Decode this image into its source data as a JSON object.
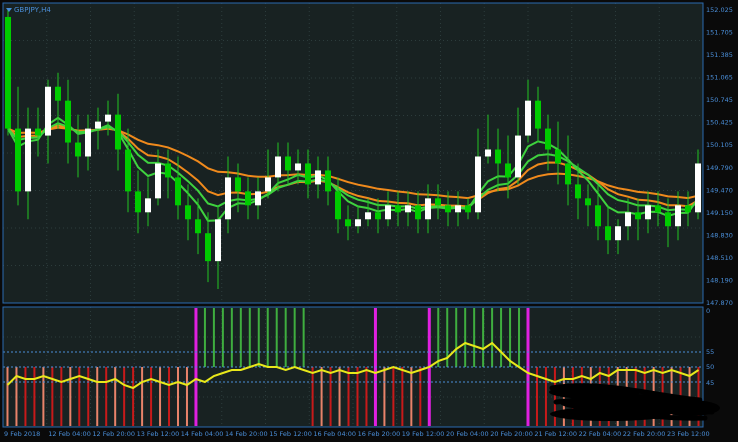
{
  "window": {
    "symbol_title": "GBPJPY,H4",
    "menu_arrow": "triangle-down-icon"
  },
  "colors": {
    "background": "#0a0a0a",
    "panel_bg": "#182222",
    "grid": "#2c3c3c",
    "frame": "#2a6ab0",
    "axis_text": "#4a8ed8",
    "bull_candle": "#ffffff",
    "bear_candle": "#00cc00",
    "wick": "#22c422",
    "ma_orange": "#f08a1c",
    "ma_green": "#3fd23f",
    "osc_line": "#e8e81a",
    "hist_red": "#c81a1a",
    "hist_salmon": "#e8836a",
    "hist_green": "#3fae3f",
    "hist_magenta": "#e020e0",
    "level_line": "#4a8ed8"
  },
  "price_axis_labels": [
    "152.025",
    "151.705",
    "151.385",
    "151.065",
    "150.745",
    "150.425",
    "150.105",
    "149.790",
    "149.470",
    "149.150",
    "148.830",
    "148.510",
    "148.190",
    "147.870"
  ],
  "indicator_axis_labels": [
    "0",
    "55",
    "50",
    "45"
  ],
  "time_axis_labels": [
    "9 Feb 2018",
    "12 Feb 04:00",
    "12 Feb 20:00",
    "13 Feb 12:00",
    "14 Feb 04:00",
    "14 Feb 20:00",
    "15 Feb 12:00",
    "16 Feb 04:00",
    "16 Feb 20:00",
    "19 Feb 12:00",
    "20 Feb 04:00",
    "20 Feb 20:00",
    "21 Feb 12:00",
    "22 Feb 04:00",
    "22 Feb 20:00",
    "23 Feb 12:00"
  ],
  "chart_data": {
    "type": "candlestick",
    "symbol": "GBPJPY",
    "timeframe": "H4",
    "ylim": [
      147.8,
      152.1
    ],
    "candles": [
      [
        151.9,
        150.3,
        152.0,
        150.2
      ],
      [
        150.3,
        149.4,
        150.9,
        149.2
      ],
      [
        149.4,
        150.3,
        150.6,
        149.0
      ],
      [
        150.3,
        150.2,
        150.6,
        149.9
      ],
      [
        150.2,
        150.9,
        151.0,
        149.8
      ],
      [
        150.9,
        150.7,
        151.1,
        150.3
      ],
      [
        150.7,
        150.1,
        151.0,
        149.8
      ],
      [
        150.1,
        149.9,
        150.5,
        149.6
      ],
      [
        149.9,
        150.3,
        150.5,
        149.7
      ],
      [
        150.3,
        150.4,
        150.6,
        150.0
      ],
      [
        150.4,
        150.5,
        150.7,
        150.2
      ],
      [
        150.5,
        150.0,
        150.8,
        149.7
      ],
      [
        150.0,
        149.4,
        150.3,
        149.1
      ],
      [
        149.4,
        149.1,
        149.7,
        148.8
      ],
      [
        149.1,
        149.3,
        149.6,
        148.9
      ],
      [
        149.3,
        149.8,
        150.0,
        149.2
      ],
      [
        149.8,
        149.6,
        150.0,
        149.3
      ],
      [
        149.6,
        149.2,
        149.9,
        149.0
      ],
      [
        149.2,
        149.0,
        149.5,
        148.7
      ],
      [
        149.0,
        148.8,
        149.3,
        148.5
      ],
      [
        148.8,
        148.4,
        149.1,
        148.1
      ],
      [
        148.4,
        149.0,
        149.2,
        148.0
      ],
      [
        149.0,
        149.6,
        149.9,
        148.8
      ],
      [
        149.6,
        149.4,
        149.8,
        149.1
      ],
      [
        149.4,
        149.2,
        149.6,
        149.0
      ],
      [
        149.2,
        149.4,
        149.6,
        149.0
      ],
      [
        149.4,
        149.6,
        150.0,
        149.3
      ],
      [
        149.6,
        149.9,
        150.1,
        149.4
      ],
      [
        149.9,
        149.7,
        150.1,
        149.5
      ],
      [
        149.7,
        149.8,
        150.0,
        149.5
      ],
      [
        149.8,
        149.5,
        150.0,
        149.3
      ],
      [
        149.5,
        149.7,
        149.9,
        149.3
      ],
      [
        149.7,
        149.4,
        149.9,
        149.2
      ],
      [
        149.4,
        149.0,
        149.6,
        148.8
      ],
      [
        149.0,
        148.9,
        149.2,
        148.7
      ],
      [
        148.9,
        149.0,
        149.2,
        148.8
      ],
      [
        149.0,
        149.1,
        149.3,
        148.9
      ],
      [
        149.1,
        149.0,
        149.3,
        148.8
      ],
      [
        149.0,
        149.2,
        149.4,
        148.9
      ],
      [
        149.2,
        149.1,
        149.4,
        148.9
      ],
      [
        149.1,
        149.2,
        149.4,
        148.9
      ],
      [
        149.2,
        149.0,
        149.4,
        148.8
      ],
      [
        149.0,
        149.3,
        149.5,
        148.8
      ],
      [
        149.3,
        149.2,
        149.5,
        149.0
      ],
      [
        149.2,
        149.1,
        149.4,
        148.9
      ],
      [
        149.1,
        149.2,
        149.4,
        148.9
      ],
      [
        149.2,
        149.1,
        149.3,
        149.0
      ],
      [
        149.1,
        149.9,
        150.3,
        149.0
      ],
      [
        149.9,
        150.0,
        150.5,
        149.8
      ],
      [
        150.0,
        149.8,
        150.3,
        149.4
      ],
      [
        149.8,
        149.6,
        150.2,
        149.3
      ],
      [
        149.6,
        150.2,
        150.6,
        149.5
      ],
      [
        150.2,
        150.7,
        151.0,
        150.1
      ],
      [
        150.7,
        150.3,
        150.9,
        150.1
      ],
      [
        150.3,
        150.0,
        150.5,
        149.7
      ],
      [
        150.0,
        149.8,
        150.4,
        149.5
      ],
      [
        149.8,
        149.5,
        150.2,
        149.2
      ],
      [
        149.5,
        149.3,
        149.8,
        149.0
      ],
      [
        149.3,
        149.2,
        149.5,
        148.9
      ],
      [
        149.2,
        148.9,
        149.5,
        148.7
      ],
      [
        148.9,
        148.7,
        149.2,
        148.5
      ],
      [
        148.7,
        148.9,
        149.0,
        148.5
      ],
      [
        148.9,
        149.1,
        149.3,
        148.7
      ],
      [
        149.1,
        149.0,
        149.3,
        148.7
      ],
      [
        149.0,
        149.2,
        149.4,
        148.8
      ],
      [
        149.2,
        149.1,
        149.4,
        148.9
      ],
      [
        149.1,
        148.9,
        149.3,
        148.6
      ],
      [
        148.9,
        149.2,
        149.4,
        148.7
      ],
      [
        149.2,
        149.1,
        149.4,
        148.9
      ],
      [
        149.1,
        149.8,
        150.0,
        149.0
      ]
    ],
    "indicator": {
      "levels": [
        55,
        50,
        45
      ],
      "line": [
        44,
        47,
        46,
        46,
        47,
        46,
        45,
        46,
        47,
        46,
        45,
        45,
        46,
        44,
        43,
        45,
        46,
        45,
        44,
        45,
        44,
        46,
        45,
        47,
        48,
        49,
        49,
        50,
        51,
        50,
        50,
        49,
        50,
        49,
        48,
        49,
        48,
        49,
        48,
        48,
        49,
        48,
        49,
        50,
        49,
        48,
        49,
        50,
        52,
        53,
        56,
        58,
        57,
        56,
        58,
        55,
        52,
        50,
        48,
        47,
        46,
        45,
        46,
        46,
        47,
        46,
        48,
        47,
        49,
        49,
        49,
        48,
        49,
        48,
        49,
        48,
        47,
        49
      ],
      "bar_states": [
        "salmon",
        "salmon",
        "red",
        "red",
        "salmon",
        "red",
        "red",
        "salmon",
        "red",
        "red",
        "salmon",
        "red",
        "salmon",
        "red",
        "red",
        "salmon",
        "red",
        "salmon",
        "red",
        "salmon",
        "salmon",
        "magenta",
        "green",
        "green",
        "green",
        "green",
        "green",
        "green",
        "green",
        "green",
        "green",
        "green",
        "green",
        "green",
        "red",
        "salmon",
        "red",
        "salmon",
        "red",
        "red",
        "red",
        "magenta",
        "salmon",
        "red",
        "red",
        "salmon",
        "red",
        "magenta",
        "green",
        "green",
        "green",
        "green",
        "green",
        "green",
        "green",
        "green",
        "green",
        "green",
        "magenta",
        "red",
        "red",
        "red",
        "salmon",
        "red",
        "red",
        "salmon",
        "red",
        "red",
        "salmon",
        "salmon",
        "red",
        "red",
        "salmon",
        "red",
        "salmon",
        "red",
        "salmon",
        "red"
      ]
    }
  }
}
